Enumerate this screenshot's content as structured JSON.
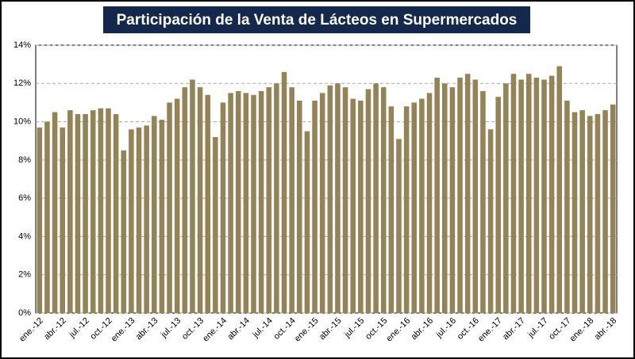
{
  "chart_data": {
    "type": "bar",
    "title": "Participación de la Venta de Lácteos en Supermercados",
    "categories": [
      "ene.-12",
      null,
      null,
      "abr.-12",
      null,
      null,
      "jul.-12",
      null,
      null,
      "oct.-12",
      null,
      null,
      "ene.-13",
      null,
      null,
      "abr.-13",
      null,
      null,
      "jul.-13",
      null,
      null,
      "oct.-13",
      null,
      null,
      "ene.-14",
      null,
      null,
      "abr.-14",
      null,
      null,
      "jul.-14",
      null,
      null,
      "oct.-14",
      null,
      null,
      "ene.-15",
      null,
      null,
      "abr.-15",
      null,
      null,
      "jul.-15",
      null,
      null,
      "oct.-15",
      null,
      null,
      "ene.-16",
      null,
      null,
      "abr.-16",
      null,
      null,
      "jul.-16",
      null,
      null,
      "oct.-16",
      null,
      null,
      "ene.-17",
      null,
      null,
      "abr.-17",
      null,
      null,
      "jul.-17",
      null,
      null,
      "oct.-17",
      null,
      null,
      "ene.-18",
      null,
      null,
      "abr.-18"
    ],
    "values": [
      9.7,
      10.0,
      10.5,
      9.7,
      10.6,
      10.4,
      10.4,
      10.6,
      10.7,
      10.7,
      10.4,
      8.5,
      9.6,
      9.7,
      9.8,
      10.3,
      10.1,
      11.0,
      11.2,
      11.8,
      12.2,
      11.8,
      11.4,
      9.2,
      11.0,
      11.5,
      11.6,
      11.5,
      11.4,
      11.6,
      11.8,
      12.0,
      12.6,
      11.8,
      11.1,
      9.5,
      11.1,
      11.5,
      11.9,
      12.0,
      11.8,
      11.2,
      11.1,
      11.7,
      12.0,
      11.8,
      10.8,
      9.1,
      10.8,
      11.0,
      11.2,
      11.5,
      12.3,
      12.0,
      11.8,
      12.3,
      12.5,
      12.2,
      11.6,
      9.6,
      11.3,
      12.0,
      12.5,
      12.2,
      12.5,
      12.3,
      12.2,
      12.4,
      12.9,
      11.1,
      10.5,
      10.6,
      10.3,
      10.4,
      10.6,
      10.9
    ],
    "color": "#938357",
    "ylim": [
      0,
      14
    ],
    "yticks": [
      {
        "value": 0,
        "label": "0%"
      },
      {
        "value": 2,
        "label": "2%"
      },
      {
        "value": 4,
        "label": "4%"
      },
      {
        "value": 6,
        "label": "6%"
      },
      {
        "value": 8,
        "label": "8%"
      },
      {
        "value": 10,
        "label": "10%"
      },
      {
        "value": 12,
        "label": "12%"
      },
      {
        "value": 14,
        "label": "14%"
      }
    ],
    "grid": true
  }
}
